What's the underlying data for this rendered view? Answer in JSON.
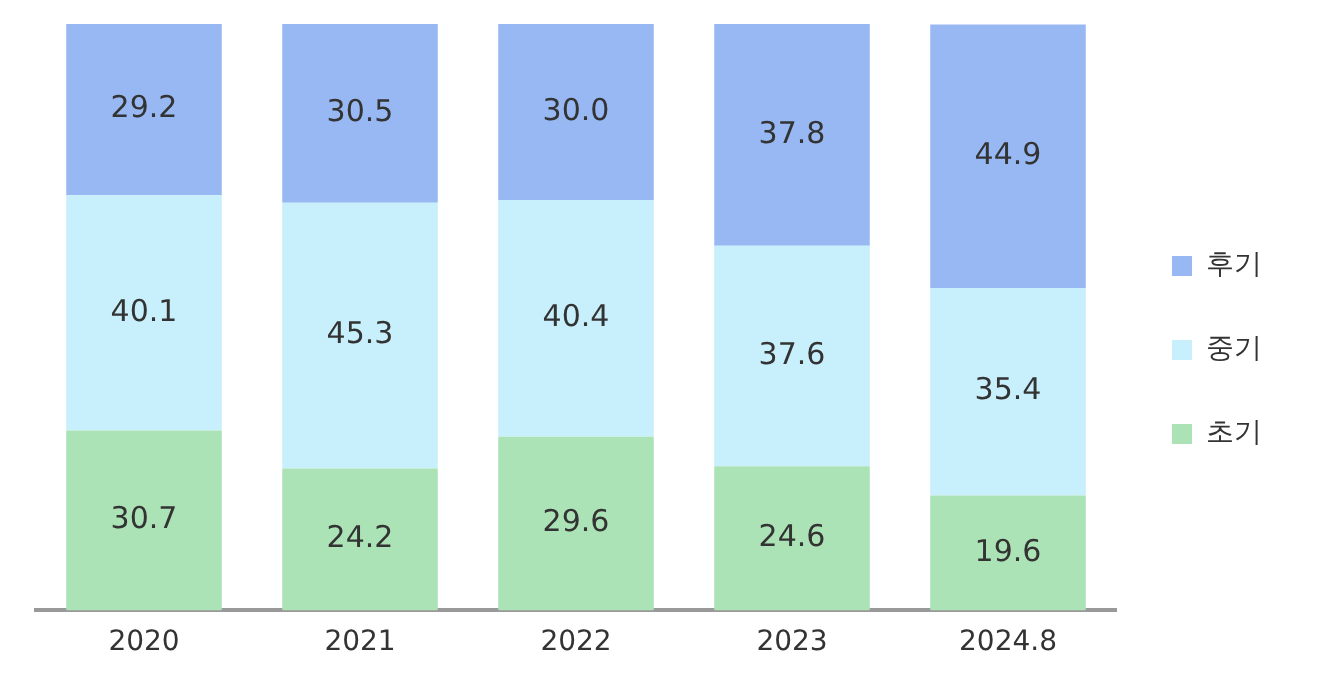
{
  "chart_data": {
    "type": "bar",
    "stacked": true,
    "categories": [
      "2020",
      "2021",
      "2022",
      "2023",
      "2024.8"
    ],
    "series": [
      {
        "name": "초기",
        "color": "#abe3b6",
        "values": [
          30.7,
          24.2,
          29.6,
          24.6,
          19.6
        ],
        "value_labels": [
          "30.7",
          "24.2",
          "29.6",
          "24.6",
          "19.6"
        ]
      },
      {
        "name": "중기",
        "color": "#c8f0fc",
        "values": [
          40.1,
          45.3,
          40.4,
          37.6,
          35.4
        ],
        "value_labels": [
          "40.1",
          "45.3",
          "40.4",
          "37.6",
          "35.4"
        ]
      },
      {
        "name": "후기",
        "color": "#97b8f3",
        "values": [
          29.2,
          30.5,
          30.0,
          37.8,
          44.9
        ],
        "value_labels": [
          "29.2",
          "30.5",
          "30.0",
          "37.8",
          "44.9"
        ]
      }
    ],
    "legend": "right"
  }
}
